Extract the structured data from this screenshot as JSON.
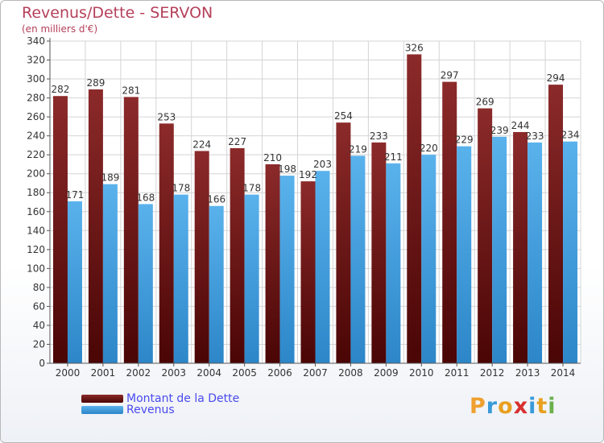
{
  "title": "Revenus/Dette - SERVON",
  "subtitle": "(en milliers d'€)",
  "colors": {
    "dette": "#7a1a1a",
    "revenus": "#3d9ee0",
    "title": "#b5405a",
    "legend_text": "#4a4af0"
  },
  "legend": {
    "dette_label": "Montant de la Dette",
    "revenus_label": "Revenus"
  },
  "logo": {
    "text": "Proxiti",
    "letters": [
      "P",
      "r",
      "o",
      "x",
      "i",
      "t",
      "i"
    ]
  },
  "chart_data": {
    "type": "bar",
    "title": "Revenus/Dette - SERVON",
    "subtitle": "(en milliers d'€)",
    "categories": [
      "2000",
      "2001",
      "2002",
      "2003",
      "2004",
      "2005",
      "2006",
      "2007",
      "2008",
      "2009",
      "2010",
      "2011",
      "2012",
      "2013",
      "2014"
    ],
    "series": [
      {
        "name": "Montant de la Dette",
        "values": [
          282,
          289,
          281,
          253,
          224,
          227,
          210,
          192,
          254,
          233,
          326,
          297,
          269,
          244,
          294
        ]
      },
      {
        "name": "Revenus",
        "values": [
          171,
          189,
          168,
          178,
          166,
          178,
          198,
          203,
          219,
          211,
          220,
          229,
          239,
          233,
          234
        ]
      }
    ],
    "ylim": [
      0,
      340
    ],
    "yticks": [
      0,
      20,
      40,
      60,
      80,
      100,
      120,
      140,
      160,
      180,
      200,
      220,
      240,
      260,
      280,
      300,
      320,
      340
    ],
    "grid": true,
    "legend_position": "bottom-left"
  }
}
